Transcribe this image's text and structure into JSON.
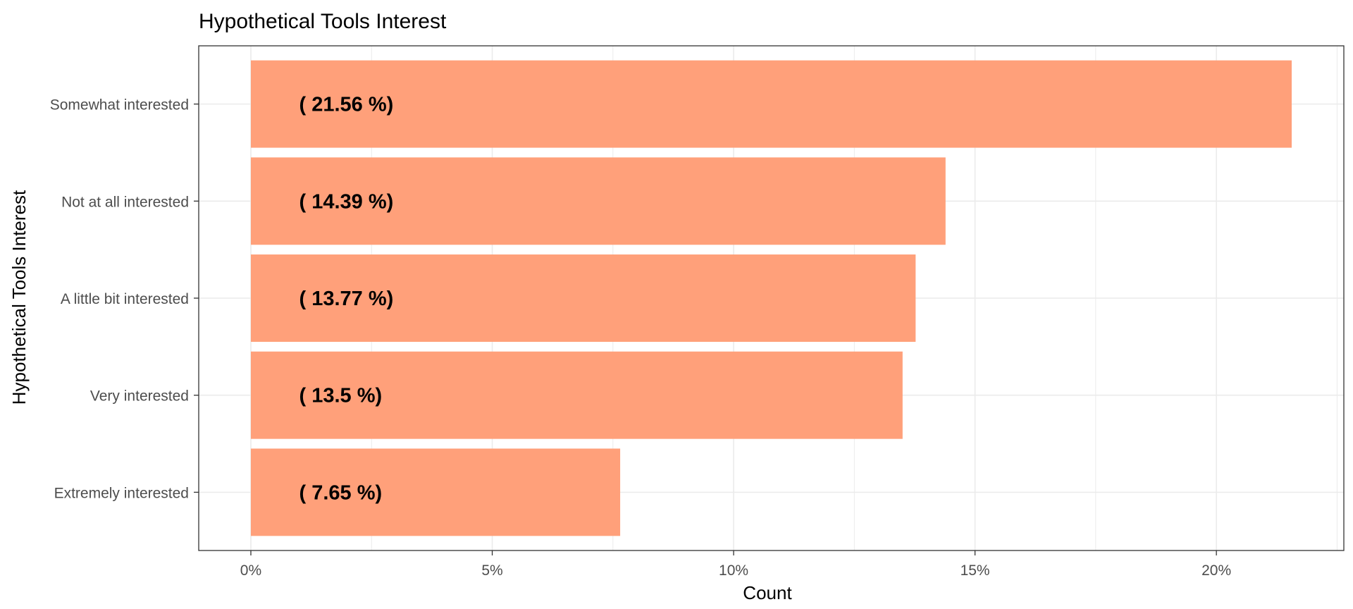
{
  "chart_data": {
    "type": "bar",
    "orientation": "horizontal",
    "title": "Hypothetical Tools Interest",
    "xlabel": "Count",
    "ylabel": "Hypothetical Tools Interest",
    "categories": [
      "Somewhat interested",
      "Not at all interested",
      "A little bit interested",
      "Very interested",
      "Extremely interested"
    ],
    "values": [
      21.56,
      14.39,
      13.77,
      13.5,
      7.65
    ],
    "data_labels": [
      "( 21.56 %)",
      "( 14.39 %)",
      "( 13.77 %)",
      "( 13.5 %)",
      "( 7.65 %)"
    ],
    "x_ticks": [
      0,
      5,
      10,
      15,
      20
    ],
    "x_tick_labels": [
      "0%",
      "5%",
      "10%",
      "15%",
      "20%"
    ],
    "xlim": [
      -1.08,
      22.64
    ],
    "grid": true,
    "bar_color": "#FFA07A",
    "grid_color": "#ebebeb",
    "panel_border_color": "#333333"
  }
}
